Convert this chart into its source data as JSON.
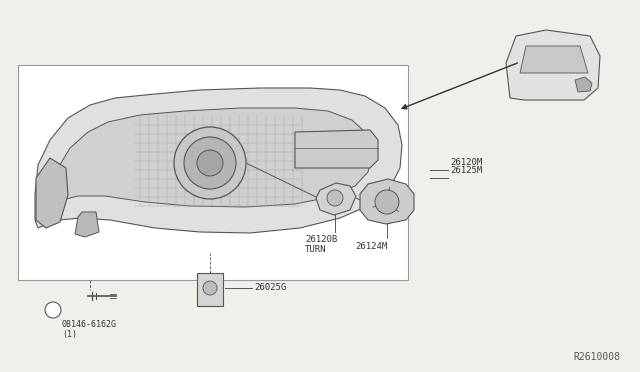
{
  "bg_color": "#f0f0eb",
  "ref_code": "R2610008",
  "labels": {
    "part1": "26120M",
    "part2": "26125M",
    "part3": "26120B\nTURN",
    "part4": "26124M",
    "part5": "26025G",
    "part6": "08146-6162G\n(1)"
  },
  "line_color": "#555555",
  "text_color": "#333333"
}
